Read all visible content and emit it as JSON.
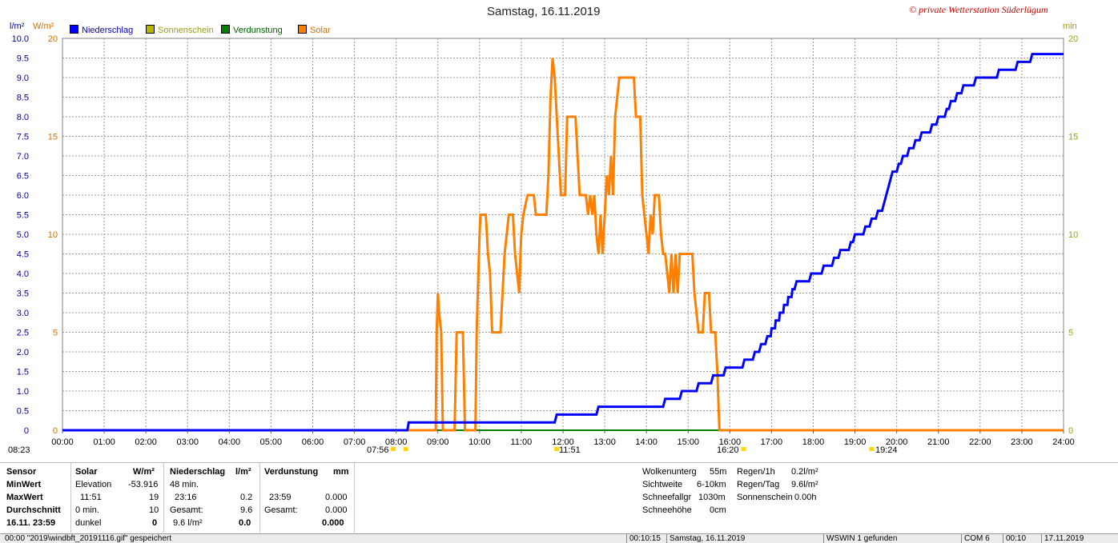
{
  "header": {
    "title": "Samstag, 16.11.2019",
    "credit": "© private Wetterstation Süderlügum",
    "left_unit_1": "l/m²",
    "left_unit_2": "W/m²",
    "right_unit": "min"
  },
  "legend": [
    {
      "label": "Niederschlag",
      "color": "#0000ff"
    },
    {
      "label": "Sonnenschein",
      "color": "#b8b800"
    },
    {
      "label": "Verdunstung",
      "color": "#008000"
    },
    {
      "label": "Solar",
      "color": "#ff8000"
    }
  ],
  "markers": {
    "sunrise_time": "08:23",
    "dawn_time": "07:56",
    "solar_max_time": "11:51",
    "sunset_time": "16:20",
    "rain_time": "19:24"
  },
  "chart_data": {
    "type": "line",
    "title": "Samstag, 16.11.2019",
    "x_ticks": [
      "00:00",
      "01:00",
      "02:00",
      "03:00",
      "04:00",
      "05:00",
      "06:00",
      "07:00",
      "08:00",
      "09:00",
      "10:00",
      "11:00",
      "12:00",
      "13:00",
      "14:00",
      "15:00",
      "16:00",
      "17:00",
      "18:00",
      "19:00",
      "20:00",
      "21:00",
      "22:00",
      "23:00",
      "24:00"
    ],
    "x_range_hours": [
      0,
      24
    ],
    "y_left_precip_ticks": [
      "0",
      "0.5",
      "1.0",
      "1.5",
      "2.0",
      "2.5",
      "3.0",
      "3.5",
      "4.0",
      "4.5",
      "5.0",
      "5.5",
      "6.0",
      "6.5",
      "7.0",
      "7.5",
      "8.0",
      "8.5",
      "9.0",
      "9.5",
      "10.0"
    ],
    "y_left_precip_range": [
      0,
      10
    ],
    "y_left_solar_ticks": [
      "0",
      "5",
      "10",
      "15",
      "20"
    ],
    "y_left_solar_range": [
      0,
      20
    ],
    "y_right_ticks": [
      "0",
      "5",
      "10",
      "15",
      "20"
    ],
    "y_right_range": [
      0,
      20
    ],
    "grid": true,
    "legend_position": "top-left",
    "series": [
      {
        "name": "Niederschlag",
        "color": "#0000ff",
        "axis": "precip",
        "step": true,
        "points": [
          [
            0,
            0
          ],
          [
            8.27,
            0
          ],
          [
            8.3,
            0.2
          ],
          [
            11.8,
            0.2
          ],
          [
            11.85,
            0.4
          ],
          [
            12.8,
            0.4
          ],
          [
            12.85,
            0.6
          ],
          [
            14.4,
            0.6
          ],
          [
            14.45,
            0.8
          ],
          [
            14.8,
            0.8
          ],
          [
            14.85,
            1.0
          ],
          [
            15.2,
            1.0
          ],
          [
            15.25,
            1.2
          ],
          [
            15.55,
            1.2
          ],
          [
            15.6,
            1.4
          ],
          [
            15.85,
            1.4
          ],
          [
            15.9,
            1.6
          ],
          [
            16.3,
            1.6
          ],
          [
            16.35,
            1.8
          ],
          [
            16.55,
            1.8
          ],
          [
            16.6,
            2.0
          ],
          [
            16.7,
            2.0
          ],
          [
            16.75,
            2.2
          ],
          [
            16.85,
            2.2
          ],
          [
            16.9,
            2.4
          ],
          [
            16.98,
            2.4
          ],
          [
            17.0,
            2.6
          ],
          [
            17.08,
            2.6
          ],
          [
            17.1,
            2.8
          ],
          [
            17.18,
            2.8
          ],
          [
            17.2,
            3.0
          ],
          [
            17.28,
            3.0
          ],
          [
            17.3,
            3.2
          ],
          [
            17.38,
            3.2
          ],
          [
            17.4,
            3.4
          ],
          [
            17.48,
            3.4
          ],
          [
            17.5,
            3.6
          ],
          [
            17.55,
            3.6
          ],
          [
            17.6,
            3.8
          ],
          [
            17.9,
            3.8
          ],
          [
            17.95,
            4.0
          ],
          [
            18.2,
            4.0
          ],
          [
            18.25,
            4.2
          ],
          [
            18.45,
            4.2
          ],
          [
            18.5,
            4.4
          ],
          [
            18.6,
            4.4
          ],
          [
            18.65,
            4.6
          ],
          [
            18.85,
            4.6
          ],
          [
            18.9,
            4.8
          ],
          [
            18.95,
            4.8
          ],
          [
            19.0,
            5.0
          ],
          [
            19.2,
            5.0
          ],
          [
            19.25,
            5.2
          ],
          [
            19.35,
            5.2
          ],
          [
            19.4,
            5.4
          ],
          [
            19.5,
            5.4
          ],
          [
            19.55,
            5.6
          ],
          [
            19.65,
            5.6
          ],
          [
            19.7,
            5.8
          ],
          [
            19.75,
            6.0
          ],
          [
            19.8,
            6.2
          ],
          [
            19.85,
            6.4
          ],
          [
            19.9,
            6.6
          ],
          [
            20.0,
            6.6
          ],
          [
            20.05,
            6.8
          ],
          [
            20.1,
            6.8
          ],
          [
            20.15,
            7.0
          ],
          [
            20.25,
            7.0
          ],
          [
            20.3,
            7.2
          ],
          [
            20.4,
            7.2
          ],
          [
            20.45,
            7.4
          ],
          [
            20.55,
            7.4
          ],
          [
            20.6,
            7.6
          ],
          [
            20.8,
            7.6
          ],
          [
            20.85,
            7.8
          ],
          [
            20.95,
            7.8
          ],
          [
            21.0,
            8.0
          ],
          [
            21.15,
            8.0
          ],
          [
            21.2,
            8.2
          ],
          [
            21.25,
            8.2
          ],
          [
            21.3,
            8.4
          ],
          [
            21.4,
            8.4
          ],
          [
            21.45,
            8.6
          ],
          [
            21.55,
            8.6
          ],
          [
            21.6,
            8.8
          ],
          [
            21.85,
            8.8
          ],
          [
            21.9,
            9.0
          ],
          [
            22.4,
            9.0
          ],
          [
            22.45,
            9.2
          ],
          [
            22.85,
            9.2
          ],
          [
            22.9,
            9.4
          ],
          [
            23.2,
            9.4
          ],
          [
            23.25,
            9.6
          ],
          [
            24.0,
            9.6
          ]
        ]
      },
      {
        "name": "Sonnenschein",
        "color": "#b8b800",
        "axis": "right",
        "points": [
          [
            0,
            0
          ],
          [
            24,
            0
          ]
        ]
      },
      {
        "name": "Verdunstung",
        "color": "#008000",
        "axis": "right",
        "points": [
          [
            0,
            0
          ],
          [
            24,
            0
          ]
        ]
      },
      {
        "name": "Solar",
        "color": "#ff8000",
        "axis": "solar",
        "points": [
          [
            0,
            0
          ],
          [
            8.95,
            0
          ],
          [
            8.97,
            5
          ],
          [
            9.0,
            7
          ],
          [
            9.03,
            6
          ],
          [
            9.08,
            5
          ],
          [
            9.12,
            0
          ],
          [
            9.4,
            0
          ],
          [
            9.45,
            5
          ],
          [
            9.6,
            5
          ],
          [
            9.65,
            0
          ],
          [
            9.9,
            0
          ],
          [
            9.93,
            5
          ],
          [
            9.97,
            8
          ],
          [
            10.0,
            10
          ],
          [
            10.02,
            11
          ],
          [
            10.15,
            11
          ],
          [
            10.2,
            9
          ],
          [
            10.25,
            8
          ],
          [
            10.3,
            5
          ],
          [
            10.5,
            5
          ],
          [
            10.55,
            7
          ],
          [
            10.6,
            9
          ],
          [
            10.7,
            11
          ],
          [
            10.8,
            11
          ],
          [
            10.85,
            9
          ],
          [
            10.9,
            8
          ],
          [
            10.95,
            7
          ],
          [
            10.98,
            9
          ],
          [
            11.0,
            10
          ],
          [
            11.05,
            11
          ],
          [
            11.15,
            12
          ],
          [
            11.3,
            12
          ],
          [
            11.35,
            11
          ],
          [
            11.6,
            11
          ],
          [
            11.65,
            13
          ],
          [
            11.7,
            17
          ],
          [
            11.75,
            19
          ],
          [
            11.8,
            18
          ],
          [
            11.85,
            16
          ],
          [
            11.9,
            14
          ],
          [
            11.95,
            12
          ],
          [
            12.05,
            12
          ],
          [
            12.1,
            16
          ],
          [
            12.3,
            16
          ],
          [
            12.35,
            14
          ],
          [
            12.4,
            12
          ],
          [
            12.55,
            12
          ],
          [
            12.6,
            11
          ],
          [
            12.65,
            12
          ],
          [
            12.7,
            11
          ],
          [
            12.75,
            12
          ],
          [
            12.8,
            10
          ],
          [
            12.85,
            9
          ],
          [
            12.9,
            11
          ],
          [
            12.95,
            9
          ],
          [
            13.0,
            11
          ],
          [
            13.05,
            13
          ],
          [
            13.1,
            12
          ],
          [
            13.15,
            14
          ],
          [
            13.2,
            12
          ],
          [
            13.25,
            16
          ],
          [
            13.35,
            18
          ],
          [
            13.7,
            18
          ],
          [
            13.75,
            16
          ],
          [
            13.85,
            16
          ],
          [
            13.9,
            12
          ],
          [
            13.95,
            11
          ],
          [
            14.0,
            10
          ],
          [
            14.05,
            9
          ],
          [
            14.1,
            11
          ],
          [
            14.15,
            10
          ],
          [
            14.2,
            12
          ],
          [
            14.3,
            12
          ],
          [
            14.35,
            10
          ],
          [
            14.4,
            9
          ],
          [
            14.45,
            9
          ],
          [
            14.5,
            8
          ],
          [
            14.55,
            7
          ],
          [
            14.6,
            9
          ],
          [
            14.65,
            7
          ],
          [
            14.7,
            9
          ],
          [
            14.75,
            7
          ],
          [
            14.8,
            9
          ],
          [
            15.1,
            9
          ],
          [
            15.15,
            7
          ],
          [
            15.25,
            5
          ],
          [
            15.35,
            5
          ],
          [
            15.4,
            7
          ],
          [
            15.5,
            7
          ],
          [
            15.55,
            5
          ],
          [
            15.65,
            5
          ],
          [
            15.7,
            3
          ],
          [
            15.75,
            0
          ],
          [
            24,
            0
          ]
        ]
      }
    ]
  },
  "stats": {
    "col1": {
      "header": "Sensor",
      "min": "MinWert",
      "max": "MaxWert",
      "avg": "Durchschnitt",
      "date": "16.11. 23:59"
    },
    "solar": {
      "header": "Solar",
      "unit": "W/m²",
      "row1_label": "Elevation",
      "row1_value": "-53.916",
      "row2_time": "11:51",
      "row2_value": "19",
      "row3_label": "0 min.",
      "row3_value": "10",
      "row4_label": "dunkel",
      "row4_value": "0"
    },
    "precip": {
      "header": "Niederschlag",
      "unit": "l/m²",
      "row1_label": "48 min.",
      "row2_time": "23:16",
      "row2_value": "0.2",
      "row3_label": "Gesamt:",
      "row3_value": "9.6",
      "row4_label": "9.6 l/m²",
      "row4_value": "0.0"
    },
    "evap": {
      "header": "Verdunstung",
      "unit": "mm",
      "row2_time": "23:59",
      "row2_value": "0.000",
      "row3_label": "Gesamt:",
      "row3_value": "0.000",
      "row4_value": "0.000"
    },
    "weather": [
      {
        "label": "Wolkenunterg",
        "value": "55m"
      },
      {
        "label": "Sichtweite",
        "value": "6-10km"
      },
      {
        "label": "Schneefallgr",
        "value": "1030m"
      },
      {
        "label": "Schneehöhe",
        "value": "0cm"
      }
    ],
    "rain": [
      {
        "label": "Regen/1h",
        "value": "0.2l/m²"
      },
      {
        "label": "Regen/Tag",
        "value": "9.6l/m²"
      },
      {
        "label": "Sonnenschein",
        "value": "0.00h"
      }
    ]
  },
  "statusbar": {
    "message": "00:00 \"2019\\windbft_20191116.gif\" gespeichert",
    "time1": "00:10:15",
    "date": "Samstag, 16.11.2019",
    "device": "WSWIN 1 gefunden",
    "port": "COM 6",
    "time2": "00:10",
    "date2": "17.11.2019"
  }
}
